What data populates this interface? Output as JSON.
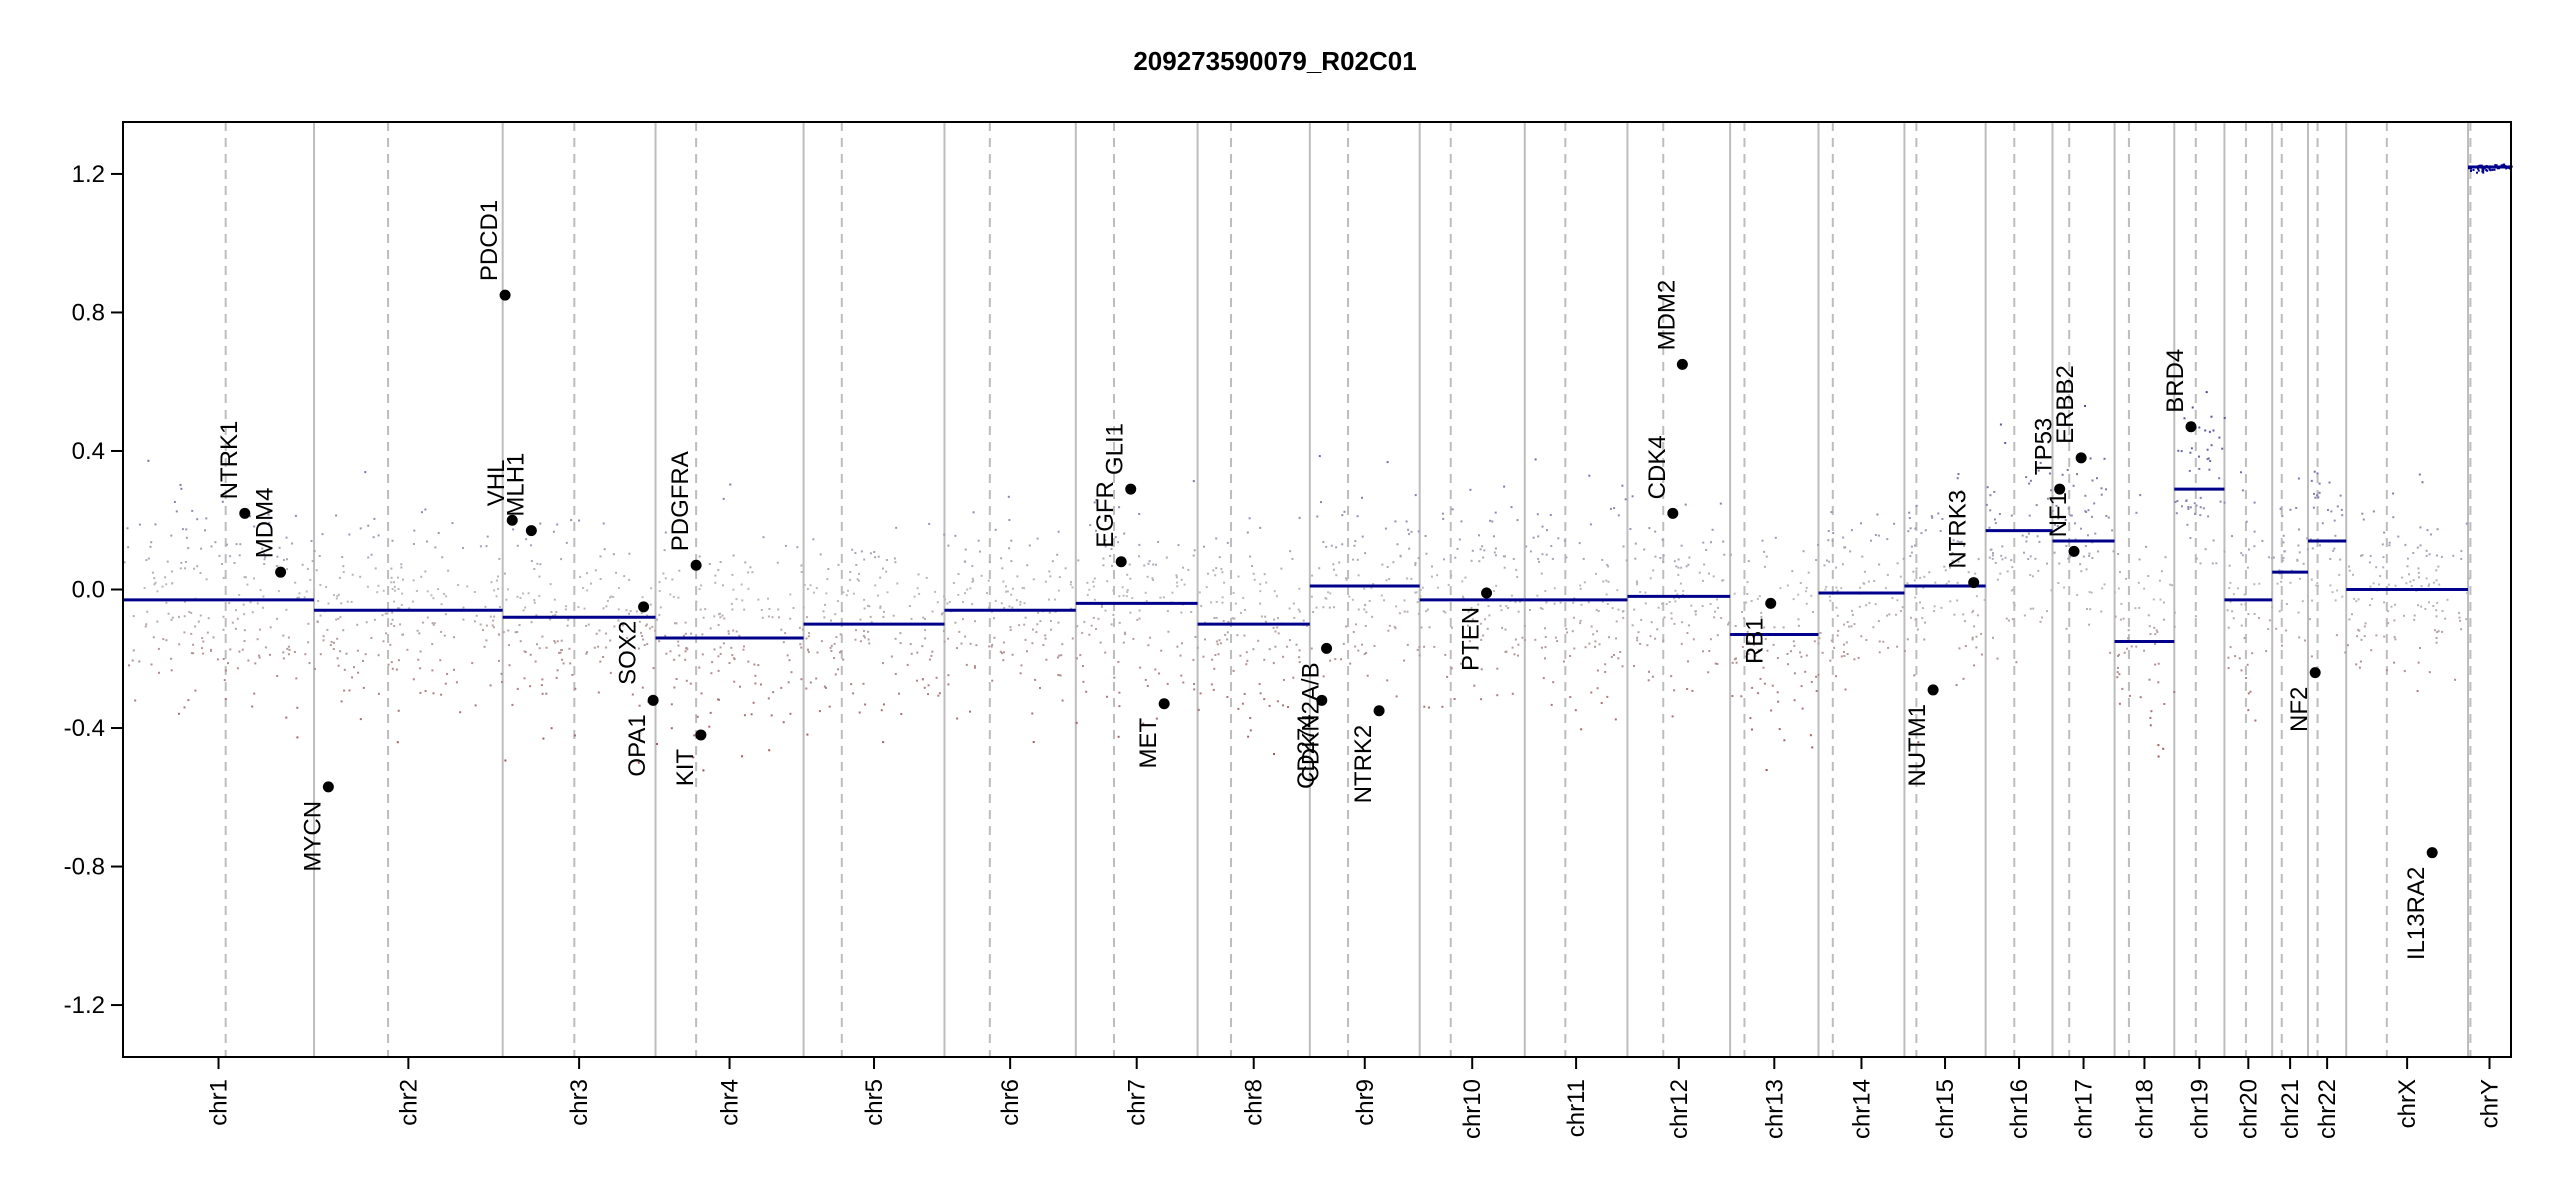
{
  "chart_data": {
    "type": "scatter",
    "title": "209273590079_R02C01",
    "xlabel": "",
    "ylabel": "",
    "ylim": [
      -1.35,
      1.35
    ],
    "yticks": [
      -1.2,
      -0.8,
      -0.4,
      0.0,
      0.4,
      0.8,
      1.2
    ],
    "ytick_labels": [
      "-1.2",
      "-0.8",
      "-0.4",
      "0.0",
      "0.4",
      "0.8",
      "1.2"
    ],
    "grid": false,
    "colors": {
      "gain": "#00008b",
      "loss": "#8b0000",
      "neutral": "#bcbcbc",
      "segment": "#00008b",
      "boundary": "#bdbdbd",
      "centromere": "#bdbdbd",
      "gene": "#000000"
    },
    "chromosomes": [
      {
        "name": "chr1",
        "start": 0.0,
        "end": 0.08,
        "centromere": 0.043,
        "segments": [
          {
            "from": 0.0,
            "to": 0.08,
            "value": -0.03
          }
        ]
      },
      {
        "name": "chr2",
        "start": 0.08,
        "end": 0.159,
        "centromere": 0.111,
        "segments": [
          {
            "from": 0.08,
            "to": 0.159,
            "value": -0.06
          }
        ]
      },
      {
        "name": "chr3",
        "start": 0.159,
        "end": 0.223,
        "centromere": 0.189,
        "segments": [
          {
            "from": 0.159,
            "to": 0.223,
            "value": -0.08
          }
        ]
      },
      {
        "name": "chr4",
        "start": 0.223,
        "end": 0.285,
        "centromere": 0.24,
        "segments": [
          {
            "from": 0.223,
            "to": 0.285,
            "value": -0.14
          }
        ]
      },
      {
        "name": "chr5",
        "start": 0.285,
        "end": 0.344,
        "centromere": 0.301,
        "segments": [
          {
            "from": 0.285,
            "to": 0.344,
            "value": -0.1
          }
        ]
      },
      {
        "name": "chr6",
        "start": 0.344,
        "end": 0.399,
        "centromere": 0.363,
        "segments": [
          {
            "from": 0.344,
            "to": 0.399,
            "value": -0.06
          }
        ]
      },
      {
        "name": "chr7",
        "start": 0.399,
        "end": 0.45,
        "centromere": 0.415,
        "segments": [
          {
            "from": 0.399,
            "to": 0.45,
            "value": -0.04
          }
        ]
      },
      {
        "name": "chr8",
        "start": 0.45,
        "end": 0.497,
        "centromere": 0.464,
        "segments": [
          {
            "from": 0.45,
            "to": 0.497,
            "value": -0.1
          }
        ]
      },
      {
        "name": "chr9",
        "start": 0.497,
        "end": 0.543,
        "centromere": 0.513,
        "segments": [
          {
            "from": 0.497,
            "to": 0.543,
            "value": 0.01
          }
        ]
      },
      {
        "name": "chr10",
        "start": 0.543,
        "end": 0.587,
        "centromere": 0.556,
        "segments": [
          {
            "from": 0.543,
            "to": 0.587,
            "value": -0.03
          }
        ]
      },
      {
        "name": "chr11",
        "start": 0.587,
        "end": 0.63,
        "centromere": 0.604,
        "segments": [
          {
            "from": 0.587,
            "to": 0.63,
            "value": -0.03
          }
        ]
      },
      {
        "name": "chr12",
        "start": 0.63,
        "end": 0.673,
        "centromere": 0.645,
        "segments": [
          {
            "from": 0.63,
            "to": 0.673,
            "value": -0.02
          }
        ]
      },
      {
        "name": "chr13",
        "start": 0.673,
        "end": 0.71,
        "centromere": 0.679,
        "segments": [
          {
            "from": 0.673,
            "to": 0.71,
            "value": -0.13
          }
        ]
      },
      {
        "name": "chr14",
        "start": 0.71,
        "end": 0.746,
        "centromere": 0.716,
        "segments": [
          {
            "from": 0.71,
            "to": 0.746,
            "value": -0.01
          }
        ]
      },
      {
        "name": "chr15",
        "start": 0.746,
        "end": 0.78,
        "centromere": 0.751,
        "segments": [
          {
            "from": 0.746,
            "to": 0.78,
            "value": 0.01
          }
        ]
      },
      {
        "name": "chr16",
        "start": 0.78,
        "end": 0.808,
        "centromere": 0.792,
        "segments": [
          {
            "from": 0.78,
            "to": 0.808,
            "value": 0.17
          }
        ]
      },
      {
        "name": "chr17",
        "start": 0.808,
        "end": 0.834,
        "centromere": 0.815,
        "segments": [
          {
            "from": 0.808,
            "to": 0.834,
            "value": 0.14
          }
        ]
      },
      {
        "name": "chr18",
        "start": 0.834,
        "end": 0.859,
        "centromere": 0.84,
        "segments": [
          {
            "from": 0.834,
            "to": 0.859,
            "value": -0.15
          }
        ]
      },
      {
        "name": "chr19",
        "start": 0.859,
        "end": 0.88,
        "centromere": 0.868,
        "segments": [
          {
            "from": 0.859,
            "to": 0.88,
            "value": 0.29
          }
        ]
      },
      {
        "name": "chr20",
        "start": 0.88,
        "end": 0.9,
        "centromere": 0.889,
        "segments": [
          {
            "from": 0.88,
            "to": 0.9,
            "value": -0.03
          }
        ]
      },
      {
        "name": "chr21",
        "start": 0.9,
        "end": 0.915,
        "centromere": 0.904,
        "segments": [
          {
            "from": 0.9,
            "to": 0.915,
            "value": 0.05
          }
        ]
      },
      {
        "name": "chr22",
        "start": 0.915,
        "end": 0.931,
        "centromere": 0.919,
        "segments": [
          {
            "from": 0.915,
            "to": 0.931,
            "value": 0.14
          }
        ]
      },
      {
        "name": "chrX",
        "start": 0.931,
        "end": 0.982,
        "centromere": 0.948,
        "segments": [
          {
            "from": 0.931,
            "to": 0.982,
            "value": 0.0
          }
        ]
      },
      {
        "name": "chrY",
        "start": 0.982,
        "end": 1.0,
        "centromere": 0.983,
        "segments": [
          {
            "from": 0.982,
            "to": 1.0,
            "value": 1.22
          }
        ]
      }
    ],
    "genes": [
      {
        "name": "NTRK1",
        "pos": 0.051,
        "value": 0.22,
        "label_side": "above"
      },
      {
        "name": "MDM4",
        "pos": 0.066,
        "value": 0.05,
        "label_side": "above"
      },
      {
        "name": "MYCN",
        "pos": 0.086,
        "value": -0.57,
        "label_side": "below"
      },
      {
        "name": "PDCD1",
        "pos": 0.16,
        "value": 0.85,
        "label_side": "above"
      },
      {
        "name": "VHL",
        "pos": 0.163,
        "value": 0.2,
        "label_side": "above"
      },
      {
        "name": "MLH1",
        "pos": 0.171,
        "value": 0.17,
        "label_side": "above"
      },
      {
        "name": "SOX2",
        "pos": 0.218,
        "value": -0.05,
        "label_side": "below"
      },
      {
        "name": "OPA1",
        "pos": 0.222,
        "value": -0.32,
        "label_side": "below"
      },
      {
        "name": "PDGFRA",
        "pos": 0.24,
        "value": 0.07,
        "label_side": "above"
      },
      {
        "name": "KIT",
        "pos": 0.242,
        "value": -0.42,
        "label_side": "below"
      },
      {
        "name": "EGFR",
        "pos": 0.418,
        "value": 0.08,
        "label_side": "above"
      },
      {
        "name": "GLI1",
        "pos": 0.422,
        "value": 0.29,
        "label_side": "above"
      },
      {
        "name": "MET",
        "pos": 0.436,
        "value": -0.33,
        "label_side": "below"
      },
      {
        "name": "CD274",
        "pos": 0.502,
        "value": -0.32,
        "label_side": "below"
      },
      {
        "name": "CDKN2A/B",
        "pos": 0.504,
        "value": -0.17,
        "label_side": "below"
      },
      {
        "name": "NTRK2",
        "pos": 0.526,
        "value": -0.35,
        "label_side": "below"
      },
      {
        "name": "PTEN",
        "pos": 0.571,
        "value": -0.01,
        "label_side": "below"
      },
      {
        "name": "CDK4",
        "pos": 0.649,
        "value": 0.22,
        "label_side": "above"
      },
      {
        "name": "MDM2",
        "pos": 0.653,
        "value": 0.65,
        "label_side": "above"
      },
      {
        "name": "RB1",
        "pos": 0.69,
        "value": -0.04,
        "label_side": "below"
      },
      {
        "name": "NUTM1",
        "pos": 0.758,
        "value": -0.29,
        "label_side": "below"
      },
      {
        "name": "NTRK3",
        "pos": 0.775,
        "value": 0.02,
        "label_side": "above"
      },
      {
        "name": "TP53",
        "pos": 0.811,
        "value": 0.29,
        "label_side": "above"
      },
      {
        "name": "NF1",
        "pos": 0.817,
        "value": 0.11,
        "label_side": "above"
      },
      {
        "name": "ERBB2",
        "pos": 0.82,
        "value": 0.38,
        "label_side": "above"
      },
      {
        "name": "BRD4",
        "pos": 0.866,
        "value": 0.47,
        "label_side": "above"
      },
      {
        "name": "NF2",
        "pos": 0.918,
        "value": -0.24,
        "label_side": "below"
      },
      {
        "name": "IL13RA2",
        "pos": 0.967,
        "value": -0.76,
        "label_side": "below"
      }
    ]
  }
}
